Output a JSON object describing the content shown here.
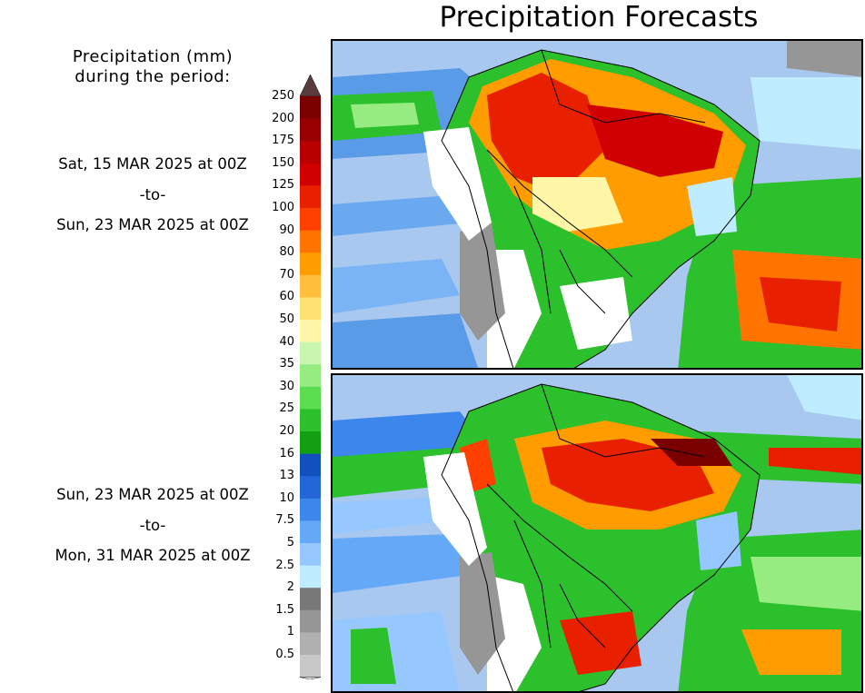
{
  "header": {
    "title": "Precipitation Forecasts"
  },
  "legend": {
    "heading_line1": "Precipitation (mm)",
    "heading_line2": "during the period:",
    "levels": [
      "250",
      "200",
      "175",
      "150",
      "125",
      "100",
      "90",
      "80",
      "70",
      "60",
      "50",
      "40",
      "35",
      "30",
      "25",
      "20",
      "16",
      "13",
      "10",
      "7.5",
      "5",
      "2.5",
      "2",
      "1.5",
      "1",
      "0.5"
    ],
    "colors": [
      "#7a0000",
      "#980000",
      "#b80000",
      "#d00000",
      "#e82000",
      "#ff4000",
      "#ff7400",
      "#ff9c00",
      "#ffbe3c",
      "#ffe070",
      "#fff6a8",
      "#c8f5b0",
      "#96ec80",
      "#5ade50",
      "#2cc02c",
      "#12a012",
      "#1250c0",
      "#2266d8",
      "#3c86ec",
      "#64a8f8",
      "#96c8ff",
      "#c0ecff",
      "#787878",
      "#969696",
      "#b0b0b0",
      "#c8c8c8"
    ],
    "over_color": "#5a3c3c",
    "under_color": "#ffffff"
  },
  "periods": [
    {
      "from": "Sat, 15 MAR 2025 at 00Z",
      "connector": "-to-",
      "to": "Sun, 23 MAR 2025 at 00Z"
    },
    {
      "from": "Sun, 23 MAR 2025 at 00Z",
      "connector": "-to-",
      "to": "Mon, 31 MAR 2025 at 00Z"
    }
  ],
  "colors": {
    "ocean": "#a8c8ef",
    "land_border": "#000000",
    "dry_land": "#ffffff"
  }
}
